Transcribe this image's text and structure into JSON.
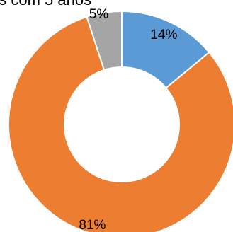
{
  "chart_data": {
    "type": "pie",
    "variant": "donut",
    "title": "es com 5 anos",
    "categories": [
      "",
      "",
      ""
    ],
    "values": [
      14,
      81,
      5
    ],
    "labels": [
      "14%",
      "81%",
      "5%"
    ],
    "colors": [
      "#5B9BD5",
      "#ED7D31",
      "#A5A5A5"
    ],
    "start_angle_deg": 0,
    "direction": "clockwise",
    "legend": "none"
  }
}
